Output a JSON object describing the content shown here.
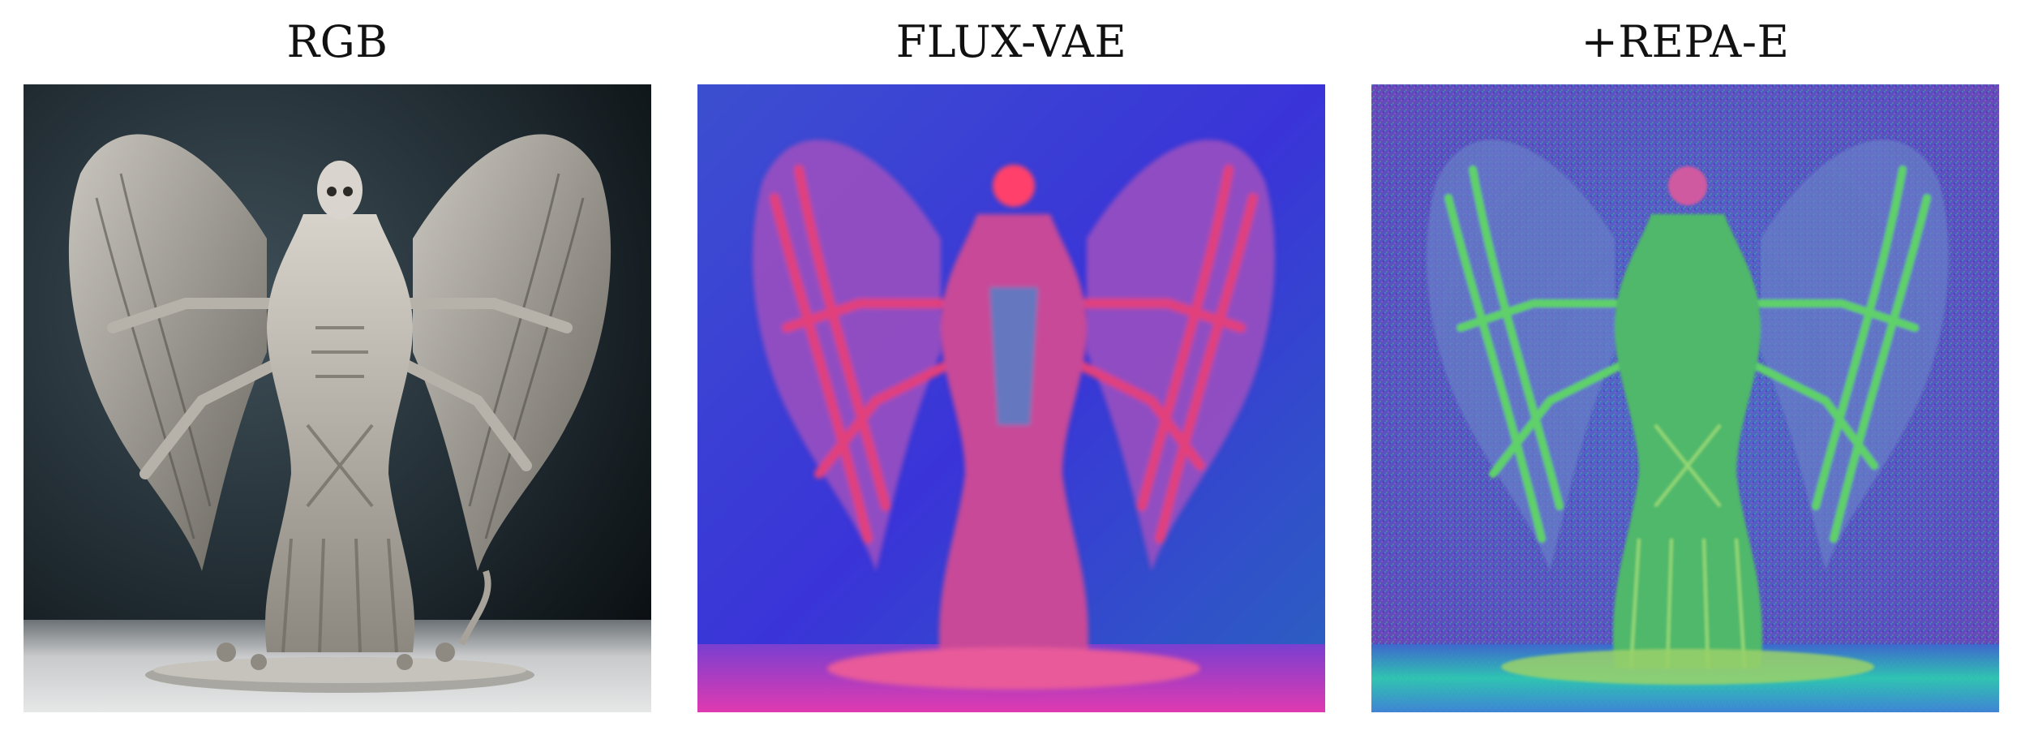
{
  "panels": [
    {
      "title": "RGB",
      "image": "grayscale sculpture of winged skeletal figure",
      "colors": {
        "background_top": "#3b4a52",
        "background_bottom": "#0b1013",
        "floor": "#d9dadb",
        "figure_light": "#c9c5bd",
        "figure_dark": "#4a4640"
      }
    },
    {
      "title": "FLUX-VAE",
      "image": "latent PCA visualization, red-pink figure on blue",
      "colors": {
        "background": "#3a38d6",
        "background_edge": "#2a56c8",
        "figure": "#e0407a",
        "figure_mid": "#b454b8",
        "floor": "#d83fb8"
      }
    },
    {
      "title": "+REPA-E",
      "image": "latent PCA visualization, green figure on noisy blue-purple",
      "colors": {
        "background": "#5a4fbf",
        "background_noise": "#3f8ac8",
        "figure": "#58c86a",
        "figure_mid": "#8ed66a",
        "accent": "#d05aa0",
        "floor": "#2ad0b0"
      }
    }
  ]
}
